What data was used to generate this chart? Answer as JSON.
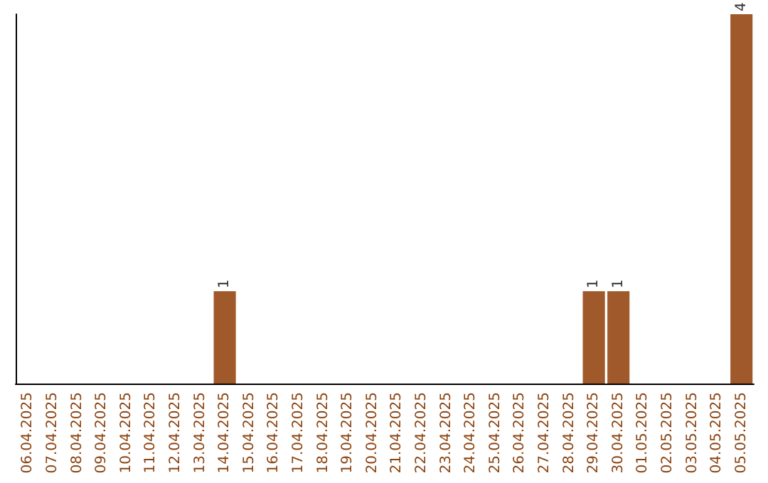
{
  "chart_data": {
    "type": "bar",
    "categories": [
      "06.04.2025",
      "07.04.2025",
      "08.04.2025",
      "09.04.2025",
      "10.04.2025",
      "11.04.2025",
      "12.04.2025",
      "13.04.2025",
      "14.04.2025",
      "15.04.2025",
      "16.04.2025",
      "17.04.2025",
      "18.04.2025",
      "19.04.2025",
      "20.04.2025",
      "21.04.2025",
      "22.04.2025",
      "23.04.2025",
      "24.04.2025",
      "25.04.2025",
      "26.04.2025",
      "27.04.2025",
      "28.04.2025",
      "29.04.2025",
      "30.04.2025",
      "01.05.2025",
      "02.05.2025",
      "03.05.2025",
      "04.05.2025",
      "05.05.2025"
    ],
    "values": [
      0,
      0,
      0,
      0,
      0,
      0,
      0,
      0,
      1,
      0,
      0,
      0,
      0,
      0,
      0,
      0,
      0,
      0,
      0,
      0,
      0,
      0,
      0,
      1,
      1,
      0,
      0,
      0,
      0,
      4
    ],
    "value_labels": [
      null,
      null,
      null,
      null,
      null,
      null,
      null,
      null,
      "1",
      null,
      null,
      null,
      null,
      null,
      null,
      null,
      null,
      null,
      null,
      null,
      null,
      null,
      null,
      "1",
      "1",
      null,
      null,
      null,
      null,
      "4"
    ],
    "color": "#a0592a",
    "tick_labels": "x"
  }
}
